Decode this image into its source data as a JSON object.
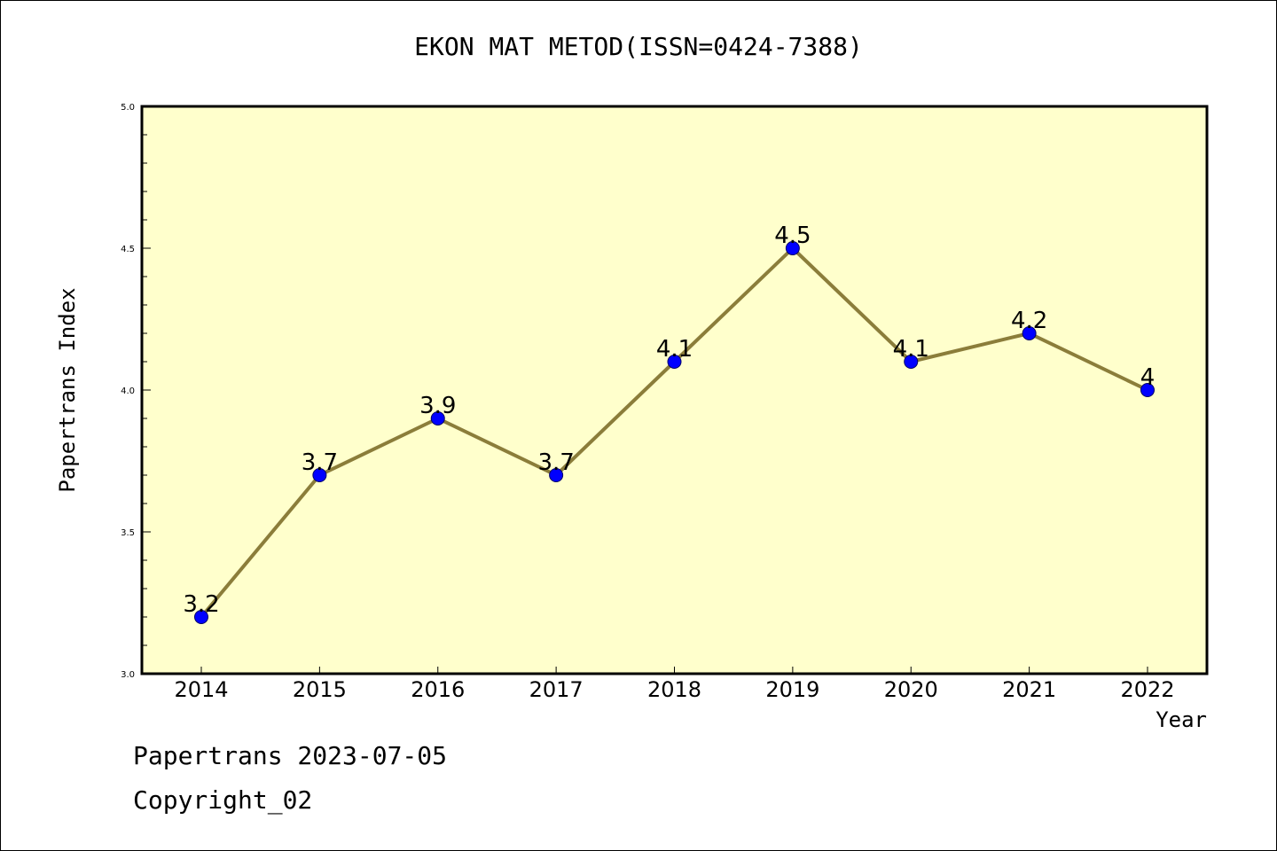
{
  "chart_data": {
    "type": "line",
    "title": "EKON MAT METOD(ISSN=0424-7388)",
    "xlabel": "Year",
    "ylabel": "Papertrans Index",
    "categories": [
      "2014",
      "2015",
      "2016",
      "2017",
      "2018",
      "2019",
      "2020",
      "2021",
      "2022"
    ],
    "series": [
      {
        "values": [
          3.2,
          3.7,
          3.9,
          3.7,
          4.1,
          4.5,
          4.1,
          4.2,
          4.0
        ],
        "labels": [
          "3.2",
          "3.7",
          "3.9",
          "3.7",
          "4.1",
          "4.5",
          "4.1",
          "4.2",
          "4"
        ]
      }
    ],
    "ylim": [
      3.0,
      5.0
    ],
    "yticks": [
      "3.0",
      "3.5",
      "4.0",
      "4.5",
      "5.0"
    ],
    "ytick_values": [
      3.0,
      3.5,
      4.0,
      4.5,
      5.0
    ],
    "grid": false,
    "colors": {
      "plot_background": "#ffffcc",
      "line": "#8b7d3a",
      "marker": "#0000ff"
    }
  },
  "footer": {
    "date_text": "Papertrans 2023-07-05",
    "copyright_text": "Copyright_02"
  }
}
